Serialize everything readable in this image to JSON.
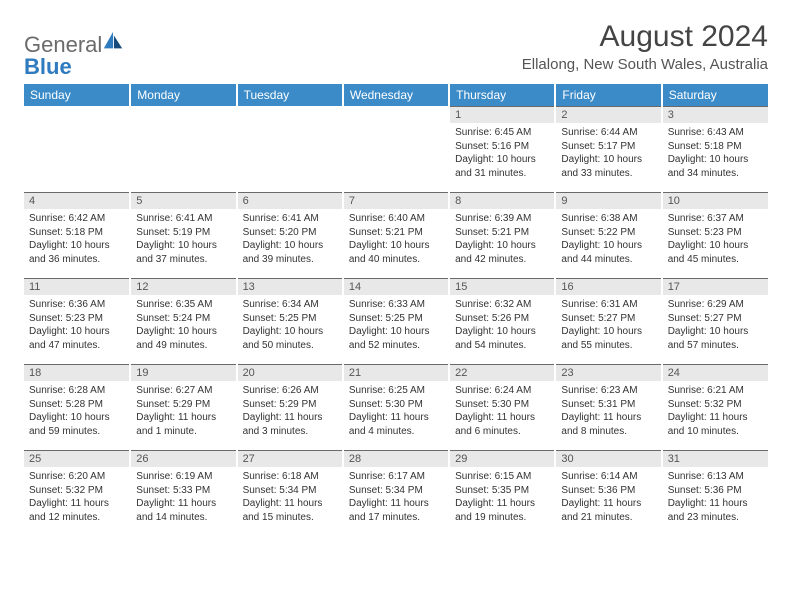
{
  "logo": {
    "word1": "General",
    "word2": "Blue"
  },
  "title": "August 2024",
  "subtitle": "Ellalong, New South Wales, Australia",
  "header_bg": "#3b8bc9",
  "daynum_bg": "#e8e8e8",
  "days": [
    "Sunday",
    "Monday",
    "Tuesday",
    "Wednesday",
    "Thursday",
    "Friday",
    "Saturday"
  ],
  "weeks": [
    [
      {
        "n": "",
        "sr": "",
        "ss": "",
        "dl": ""
      },
      {
        "n": "",
        "sr": "",
        "ss": "",
        "dl": ""
      },
      {
        "n": "",
        "sr": "",
        "ss": "",
        "dl": ""
      },
      {
        "n": "",
        "sr": "",
        "ss": "",
        "dl": ""
      },
      {
        "n": "1",
        "sr": "Sunrise: 6:45 AM",
        "ss": "Sunset: 5:16 PM",
        "dl": "Daylight: 10 hours and 31 minutes."
      },
      {
        "n": "2",
        "sr": "Sunrise: 6:44 AM",
        "ss": "Sunset: 5:17 PM",
        "dl": "Daylight: 10 hours and 33 minutes."
      },
      {
        "n": "3",
        "sr": "Sunrise: 6:43 AM",
        "ss": "Sunset: 5:18 PM",
        "dl": "Daylight: 10 hours and 34 minutes."
      }
    ],
    [
      {
        "n": "4",
        "sr": "Sunrise: 6:42 AM",
        "ss": "Sunset: 5:18 PM",
        "dl": "Daylight: 10 hours and 36 minutes."
      },
      {
        "n": "5",
        "sr": "Sunrise: 6:41 AM",
        "ss": "Sunset: 5:19 PM",
        "dl": "Daylight: 10 hours and 37 minutes."
      },
      {
        "n": "6",
        "sr": "Sunrise: 6:41 AM",
        "ss": "Sunset: 5:20 PM",
        "dl": "Daylight: 10 hours and 39 minutes."
      },
      {
        "n": "7",
        "sr": "Sunrise: 6:40 AM",
        "ss": "Sunset: 5:21 PM",
        "dl": "Daylight: 10 hours and 40 minutes."
      },
      {
        "n": "8",
        "sr": "Sunrise: 6:39 AM",
        "ss": "Sunset: 5:21 PM",
        "dl": "Daylight: 10 hours and 42 minutes."
      },
      {
        "n": "9",
        "sr": "Sunrise: 6:38 AM",
        "ss": "Sunset: 5:22 PM",
        "dl": "Daylight: 10 hours and 44 minutes."
      },
      {
        "n": "10",
        "sr": "Sunrise: 6:37 AM",
        "ss": "Sunset: 5:23 PM",
        "dl": "Daylight: 10 hours and 45 minutes."
      }
    ],
    [
      {
        "n": "11",
        "sr": "Sunrise: 6:36 AM",
        "ss": "Sunset: 5:23 PM",
        "dl": "Daylight: 10 hours and 47 minutes."
      },
      {
        "n": "12",
        "sr": "Sunrise: 6:35 AM",
        "ss": "Sunset: 5:24 PM",
        "dl": "Daylight: 10 hours and 49 minutes."
      },
      {
        "n": "13",
        "sr": "Sunrise: 6:34 AM",
        "ss": "Sunset: 5:25 PM",
        "dl": "Daylight: 10 hours and 50 minutes."
      },
      {
        "n": "14",
        "sr": "Sunrise: 6:33 AM",
        "ss": "Sunset: 5:25 PM",
        "dl": "Daylight: 10 hours and 52 minutes."
      },
      {
        "n": "15",
        "sr": "Sunrise: 6:32 AM",
        "ss": "Sunset: 5:26 PM",
        "dl": "Daylight: 10 hours and 54 minutes."
      },
      {
        "n": "16",
        "sr": "Sunrise: 6:31 AM",
        "ss": "Sunset: 5:27 PM",
        "dl": "Daylight: 10 hours and 55 minutes."
      },
      {
        "n": "17",
        "sr": "Sunrise: 6:29 AM",
        "ss": "Sunset: 5:27 PM",
        "dl": "Daylight: 10 hours and 57 minutes."
      }
    ],
    [
      {
        "n": "18",
        "sr": "Sunrise: 6:28 AM",
        "ss": "Sunset: 5:28 PM",
        "dl": "Daylight: 10 hours and 59 minutes."
      },
      {
        "n": "19",
        "sr": "Sunrise: 6:27 AM",
        "ss": "Sunset: 5:29 PM",
        "dl": "Daylight: 11 hours and 1 minute."
      },
      {
        "n": "20",
        "sr": "Sunrise: 6:26 AM",
        "ss": "Sunset: 5:29 PM",
        "dl": "Daylight: 11 hours and 3 minutes."
      },
      {
        "n": "21",
        "sr": "Sunrise: 6:25 AM",
        "ss": "Sunset: 5:30 PM",
        "dl": "Daylight: 11 hours and 4 minutes."
      },
      {
        "n": "22",
        "sr": "Sunrise: 6:24 AM",
        "ss": "Sunset: 5:30 PM",
        "dl": "Daylight: 11 hours and 6 minutes."
      },
      {
        "n": "23",
        "sr": "Sunrise: 6:23 AM",
        "ss": "Sunset: 5:31 PM",
        "dl": "Daylight: 11 hours and 8 minutes."
      },
      {
        "n": "24",
        "sr": "Sunrise: 6:21 AM",
        "ss": "Sunset: 5:32 PM",
        "dl": "Daylight: 11 hours and 10 minutes."
      }
    ],
    [
      {
        "n": "25",
        "sr": "Sunrise: 6:20 AM",
        "ss": "Sunset: 5:32 PM",
        "dl": "Daylight: 11 hours and 12 minutes."
      },
      {
        "n": "26",
        "sr": "Sunrise: 6:19 AM",
        "ss": "Sunset: 5:33 PM",
        "dl": "Daylight: 11 hours and 14 minutes."
      },
      {
        "n": "27",
        "sr": "Sunrise: 6:18 AM",
        "ss": "Sunset: 5:34 PM",
        "dl": "Daylight: 11 hours and 15 minutes."
      },
      {
        "n": "28",
        "sr": "Sunrise: 6:17 AM",
        "ss": "Sunset: 5:34 PM",
        "dl": "Daylight: 11 hours and 17 minutes."
      },
      {
        "n": "29",
        "sr": "Sunrise: 6:15 AM",
        "ss": "Sunset: 5:35 PM",
        "dl": "Daylight: 11 hours and 19 minutes."
      },
      {
        "n": "30",
        "sr": "Sunrise: 6:14 AM",
        "ss": "Sunset: 5:36 PM",
        "dl": "Daylight: 11 hours and 21 minutes."
      },
      {
        "n": "31",
        "sr": "Sunrise: 6:13 AM",
        "ss": "Sunset: 5:36 PM",
        "dl": "Daylight: 11 hours and 23 minutes."
      }
    ]
  ]
}
